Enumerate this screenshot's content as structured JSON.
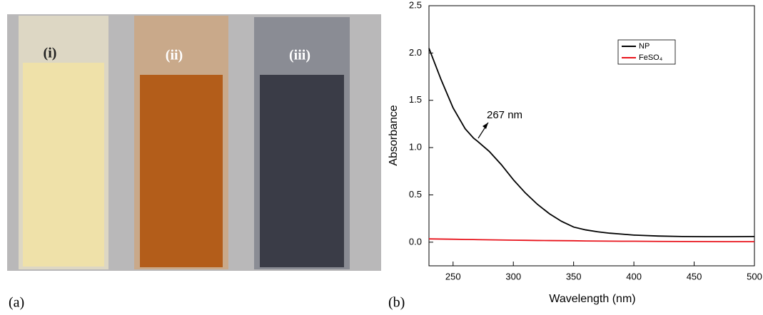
{
  "photo": {
    "labels": [
      "(i)",
      "(ii)",
      "(iii)"
    ],
    "caption": "(a)"
  },
  "chart_data": {
    "type": "line",
    "panel_label": "(b)",
    "x_label": "Wavelength (nm)",
    "y_label": "Absorbance",
    "annotation": "267 nm",
    "x": [
      230,
      240,
      250,
      260,
      267,
      270,
      280,
      290,
      300,
      310,
      320,
      330,
      340,
      350,
      360,
      370,
      380,
      390,
      400,
      420,
      440,
      460,
      480,
      500
    ],
    "series": [
      {
        "name": "NP",
        "color": "#000000",
        "values": [
          2.05,
          1.72,
          1.42,
          1.2,
          1.1,
          1.07,
          0.96,
          0.82,
          0.66,
          0.52,
          0.4,
          0.3,
          0.22,
          0.16,
          0.13,
          0.11,
          0.095,
          0.085,
          0.075,
          0.065,
          0.06,
          0.058,
          0.058,
          0.06
        ]
      },
      {
        "name": "FeSO₄",
        "color": "#e8141c",
        "values": [
          0.035,
          0.033,
          0.031,
          0.029,
          0.028,
          0.027,
          0.025,
          0.023,
          0.021,
          0.02,
          0.018,
          0.017,
          0.016,
          0.015,
          0.013,
          0.012,
          0.011,
          0.01,
          0.01,
          0.008,
          0.007,
          0.006,
          0.005,
          0.005
        ]
      }
    ],
    "xlim": [
      230,
      500
    ],
    "ylim": [
      -0.25,
      2.5
    ],
    "xticks": [
      250,
      300,
      350,
      400,
      450,
      500
    ],
    "yticks": [
      {
        "value": 0,
        "label": "0.0"
      },
      0.5,
      {
        "value": 1,
        "label": "1.0"
      },
      1.5,
      {
        "value": 2,
        "label": "2.0"
      },
      2.5
    ],
    "legend": "upper right"
  }
}
